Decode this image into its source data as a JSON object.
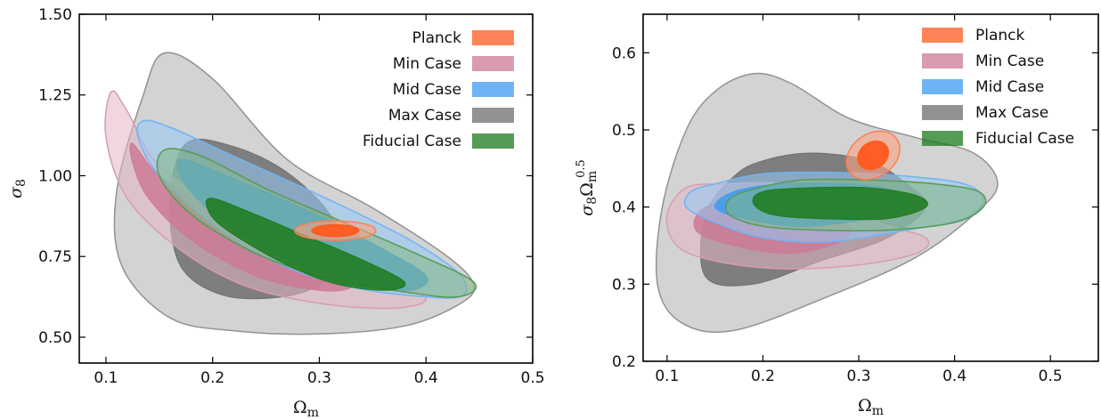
{
  "chart_data": [
    {
      "type": "contour",
      "xlabel": "Ωm",
      "ylabel": "σ8",
      "xlim": [
        0.075,
        0.5
      ],
      "ylim": [
        0.42,
        1.5
      ],
      "xticks": [
        "0.1",
        "0.2",
        "0.3",
        "0.4",
        "0.5"
      ],
      "yticks": [
        "0.50",
        "0.75",
        "1.00",
        "1.25",
        "1.50"
      ],
      "legend_position": "top-right",
      "legend": [
        "Planck",
        "Min Case",
        "Mid Case",
        "Max Case",
        "Fiducial Case"
      ],
      "series": [
        {
          "name": "Max Case",
          "color": "#6e6e6e",
          "outer": [
            [
              0.155,
              1.38
            ],
            [
              0.2,
              1.3
            ],
            [
              0.27,
              1.05
            ],
            [
              0.35,
              0.9
            ],
            [
              0.42,
              0.75
            ],
            [
              0.445,
              0.66
            ],
            [
              0.43,
              0.6
            ],
            [
              0.38,
              0.535
            ],
            [
              0.3,
              0.51
            ],
            [
              0.22,
              0.52
            ],
            [
              0.16,
              0.56
            ],
            [
              0.115,
              0.72
            ],
            [
              0.11,
              0.95
            ],
            [
              0.135,
              1.25
            ]
          ],
          "inner": [
            [
              0.175,
              1.1
            ],
            [
              0.22,
              1.09
            ],
            [
              0.27,
              1.01
            ],
            [
              0.31,
              0.88
            ],
            [
              0.325,
              0.75
            ],
            [
              0.305,
              0.67
            ],
            [
              0.265,
              0.625
            ],
            [
              0.21,
              0.63
            ],
            [
              0.17,
              0.72
            ],
            [
              0.16,
              0.92
            ]
          ]
        },
        {
          "name": "Min Case",
          "color": "#cc7a95",
          "outer": [
            [
              0.105,
              1.26
            ],
            [
              0.12,
              1.2
            ],
            [
              0.15,
              1.03
            ],
            [
              0.22,
              0.88
            ],
            [
              0.3,
              0.76
            ],
            [
              0.36,
              0.68
            ],
            [
              0.4,
              0.62
            ],
            [
              0.37,
              0.59
            ],
            [
              0.3,
              0.605
            ],
            [
              0.23,
              0.66
            ],
            [
              0.17,
              0.77
            ],
            [
              0.12,
              0.93
            ],
            [
              0.1,
              1.12
            ]
          ],
          "inner": [
            [
              0.125,
              1.1
            ],
            [
              0.15,
              1.0
            ],
            [
              0.2,
              0.89
            ],
            [
              0.27,
              0.77
            ],
            [
              0.32,
              0.7
            ],
            [
              0.33,
              0.655
            ],
            [
              0.3,
              0.645
            ],
            [
              0.24,
              0.69
            ],
            [
              0.18,
              0.8
            ],
            [
              0.14,
              0.93
            ],
            [
              0.125,
              1.04
            ]
          ]
        },
        {
          "name": "Mid Case",
          "color": "#3d9bf0",
          "outer": [
            [
              0.135,
              1.17
            ],
            [
              0.16,
              1.15
            ],
            [
              0.22,
              1.06
            ],
            [
              0.3,
              0.94
            ],
            [
              0.38,
              0.81
            ],
            [
              0.43,
              0.7
            ],
            [
              0.435,
              0.63
            ],
            [
              0.4,
              0.625
            ],
            [
              0.33,
              0.655
            ],
            [
              0.26,
              0.73
            ],
            [
              0.2,
              0.85
            ],
            [
              0.15,
              1.0
            ],
            [
              0.13,
              1.12
            ]
          ],
          "inner": [
            [
              0.17,
              1.05
            ],
            [
              0.22,
              0.99
            ],
            [
              0.29,
              0.89
            ],
            [
              0.35,
              0.79
            ],
            [
              0.4,
              0.69
            ],
            [
              0.385,
              0.645
            ],
            [
              0.34,
              0.665
            ],
            [
              0.27,
              0.74
            ],
            [
              0.21,
              0.86
            ],
            [
              0.175,
              0.97
            ]
          ]
        },
        {
          "name": "Fiducial Case",
          "color": "#1c7a1c",
          "outer": [
            [
              0.155,
              1.08
            ],
            [
              0.19,
              1.06
            ],
            [
              0.25,
              0.96
            ],
            [
              0.32,
              0.86
            ],
            [
              0.39,
              0.76
            ],
            [
              0.445,
              0.67
            ],
            [
              0.43,
              0.625
            ],
            [
              0.38,
              0.64
            ],
            [
              0.31,
              0.68
            ],
            [
              0.24,
              0.76
            ],
            [
              0.18,
              0.88
            ],
            [
              0.15,
              1.0
            ]
          ],
          "inner": [
            [
              0.2,
              0.93
            ],
            [
              0.24,
              0.88
            ],
            [
              0.29,
              0.81
            ],
            [
              0.34,
              0.74
            ],
            [
              0.38,
              0.67
            ],
            [
              0.36,
              0.645
            ],
            [
              0.31,
              0.67
            ],
            [
              0.26,
              0.74
            ],
            [
              0.21,
              0.84
            ],
            [
              0.195,
              0.9
            ]
          ]
        },
        {
          "name": "Planck",
          "color": "#ff5a1e",
          "outer_ellipse": {
            "cx": 0.315,
            "cy": 0.83,
            "rx": 0.038,
            "ry": 0.03
          },
          "inner_ellipse": {
            "cx": 0.315,
            "cy": 0.83,
            "rx": 0.022,
            "ry": 0.018
          }
        }
      ]
    },
    {
      "type": "contour",
      "xlabel": "Ωm",
      "ylabel": "σ8Ωm^0.5",
      "xlim": [
        0.075,
        0.55
      ],
      "ylim": [
        0.2,
        0.65
      ],
      "xticks": [
        "0.1",
        "0.2",
        "0.3",
        "0.4",
        "0.5"
      ],
      "yticks": [
        "0.2",
        "0.3",
        "0.4",
        "0.5",
        "0.6"
      ],
      "legend_position": "top-right",
      "legend": [
        "Planck",
        "Min Case",
        "Mid Case",
        "Max Case",
        "Fiducial Case"
      ],
      "series": [
        {
          "name": "Max Case",
          "color": "#6e6e6e",
          "outer": [
            [
              0.19,
              0.573
            ],
            [
              0.23,
              0.56
            ],
            [
              0.29,
              0.515
            ],
            [
              0.36,
              0.49
            ],
            [
              0.42,
              0.47
            ],
            [
              0.445,
              0.43
            ],
            [
              0.42,
              0.39
            ],
            [
              0.36,
              0.335
            ],
            [
              0.27,
              0.285
            ],
            [
              0.17,
              0.24
            ],
            [
              0.115,
              0.25
            ],
            [
              0.09,
              0.3
            ],
            [
              0.095,
              0.4
            ],
            [
              0.12,
              0.5
            ],
            [
              0.15,
              0.55
            ]
          ],
          "inner": [
            [
              0.2,
              0.46
            ],
            [
              0.25,
              0.47
            ],
            [
              0.31,
              0.46
            ],
            [
              0.35,
              0.43
            ],
            [
              0.37,
              0.4
            ],
            [
              0.33,
              0.36
            ],
            [
              0.26,
              0.33
            ],
            [
              0.19,
              0.3
            ],
            [
              0.14,
              0.31
            ],
            [
              0.14,
              0.39
            ],
            [
              0.17,
              0.44
            ]
          ]
        },
        {
          "name": "Min Case",
          "color": "#cc7a95",
          "outer": [
            [
              0.12,
              0.425
            ],
            [
              0.16,
              0.43
            ],
            [
              0.22,
              0.43
            ],
            [
              0.27,
              0.41
            ],
            [
              0.32,
              0.38
            ],
            [
              0.37,
              0.36
            ],
            [
              0.36,
              0.34
            ],
            [
              0.3,
              0.325
            ],
            [
              0.22,
              0.32
            ],
            [
              0.15,
              0.33
            ],
            [
              0.11,
              0.35
            ],
            [
              0.1,
              0.39
            ]
          ],
          "inner": [
            [
              0.14,
              0.4
            ],
            [
              0.19,
              0.405
            ],
            [
              0.25,
              0.395
            ],
            [
              0.29,
              0.375
            ],
            [
              0.28,
              0.355
            ],
            [
              0.23,
              0.34
            ],
            [
              0.17,
              0.35
            ],
            [
              0.13,
              0.37
            ]
          ]
        },
        {
          "name": "Mid Case",
          "color": "#3d9bf0",
          "outer": [
            [
              0.15,
              0.43
            ],
            [
              0.2,
              0.443
            ],
            [
              0.27,
              0.445
            ],
            [
              0.35,
              0.44
            ],
            [
              0.41,
              0.43
            ],
            [
              0.43,
              0.41
            ],
            [
              0.41,
              0.385
            ],
            [
              0.35,
              0.37
            ],
            [
              0.27,
              0.355
            ],
            [
              0.2,
              0.36
            ],
            [
              0.15,
              0.38
            ],
            [
              0.12,
              0.4
            ],
            [
              0.125,
              0.42
            ]
          ],
          "inner": [
            [
              0.17,
              0.42
            ],
            [
              0.22,
              0.43
            ],
            [
              0.29,
              0.43
            ],
            [
              0.34,
              0.42
            ],
            [
              0.35,
              0.4
            ],
            [
              0.31,
              0.385
            ],
            [
              0.24,
              0.375
            ],
            [
              0.18,
              0.385
            ],
            [
              0.15,
              0.4
            ]
          ]
        },
        {
          "name": "Fiducial Case",
          "color": "#1c7a1c",
          "outer": [
            [
              0.19,
              0.423
            ],
            [
              0.24,
              0.435
            ],
            [
              0.31,
              0.435
            ],
            [
              0.38,
              0.43
            ],
            [
              0.425,
              0.42
            ],
            [
              0.43,
              0.4
            ],
            [
              0.4,
              0.38
            ],
            [
              0.33,
              0.37
            ],
            [
              0.26,
              0.37
            ],
            [
              0.2,
              0.375
            ],
            [
              0.165,
              0.39
            ],
            [
              0.165,
              0.41
            ]
          ],
          "inner": [
            [
              0.2,
              0.42
            ],
            [
              0.25,
              0.425
            ],
            [
              0.31,
              0.425
            ],
            [
              0.36,
              0.415
            ],
            [
              0.37,
              0.4
            ],
            [
              0.33,
              0.385
            ],
            [
              0.26,
              0.385
            ],
            [
              0.21,
              0.39
            ],
            [
              0.19,
              0.405
            ]
          ]
        },
        {
          "name": "Planck",
          "color": "#ff5a1e",
          "outer_ellipse": {
            "cx": 0.315,
            "cy": 0.467,
            "rx": 0.03,
            "ry": 0.028,
            "rotate": -35
          },
          "inner_ellipse": {
            "cx": 0.315,
            "cy": 0.467,
            "rx": 0.017,
            "ry": 0.017,
            "rotate": -35
          }
        }
      ]
    }
  ]
}
